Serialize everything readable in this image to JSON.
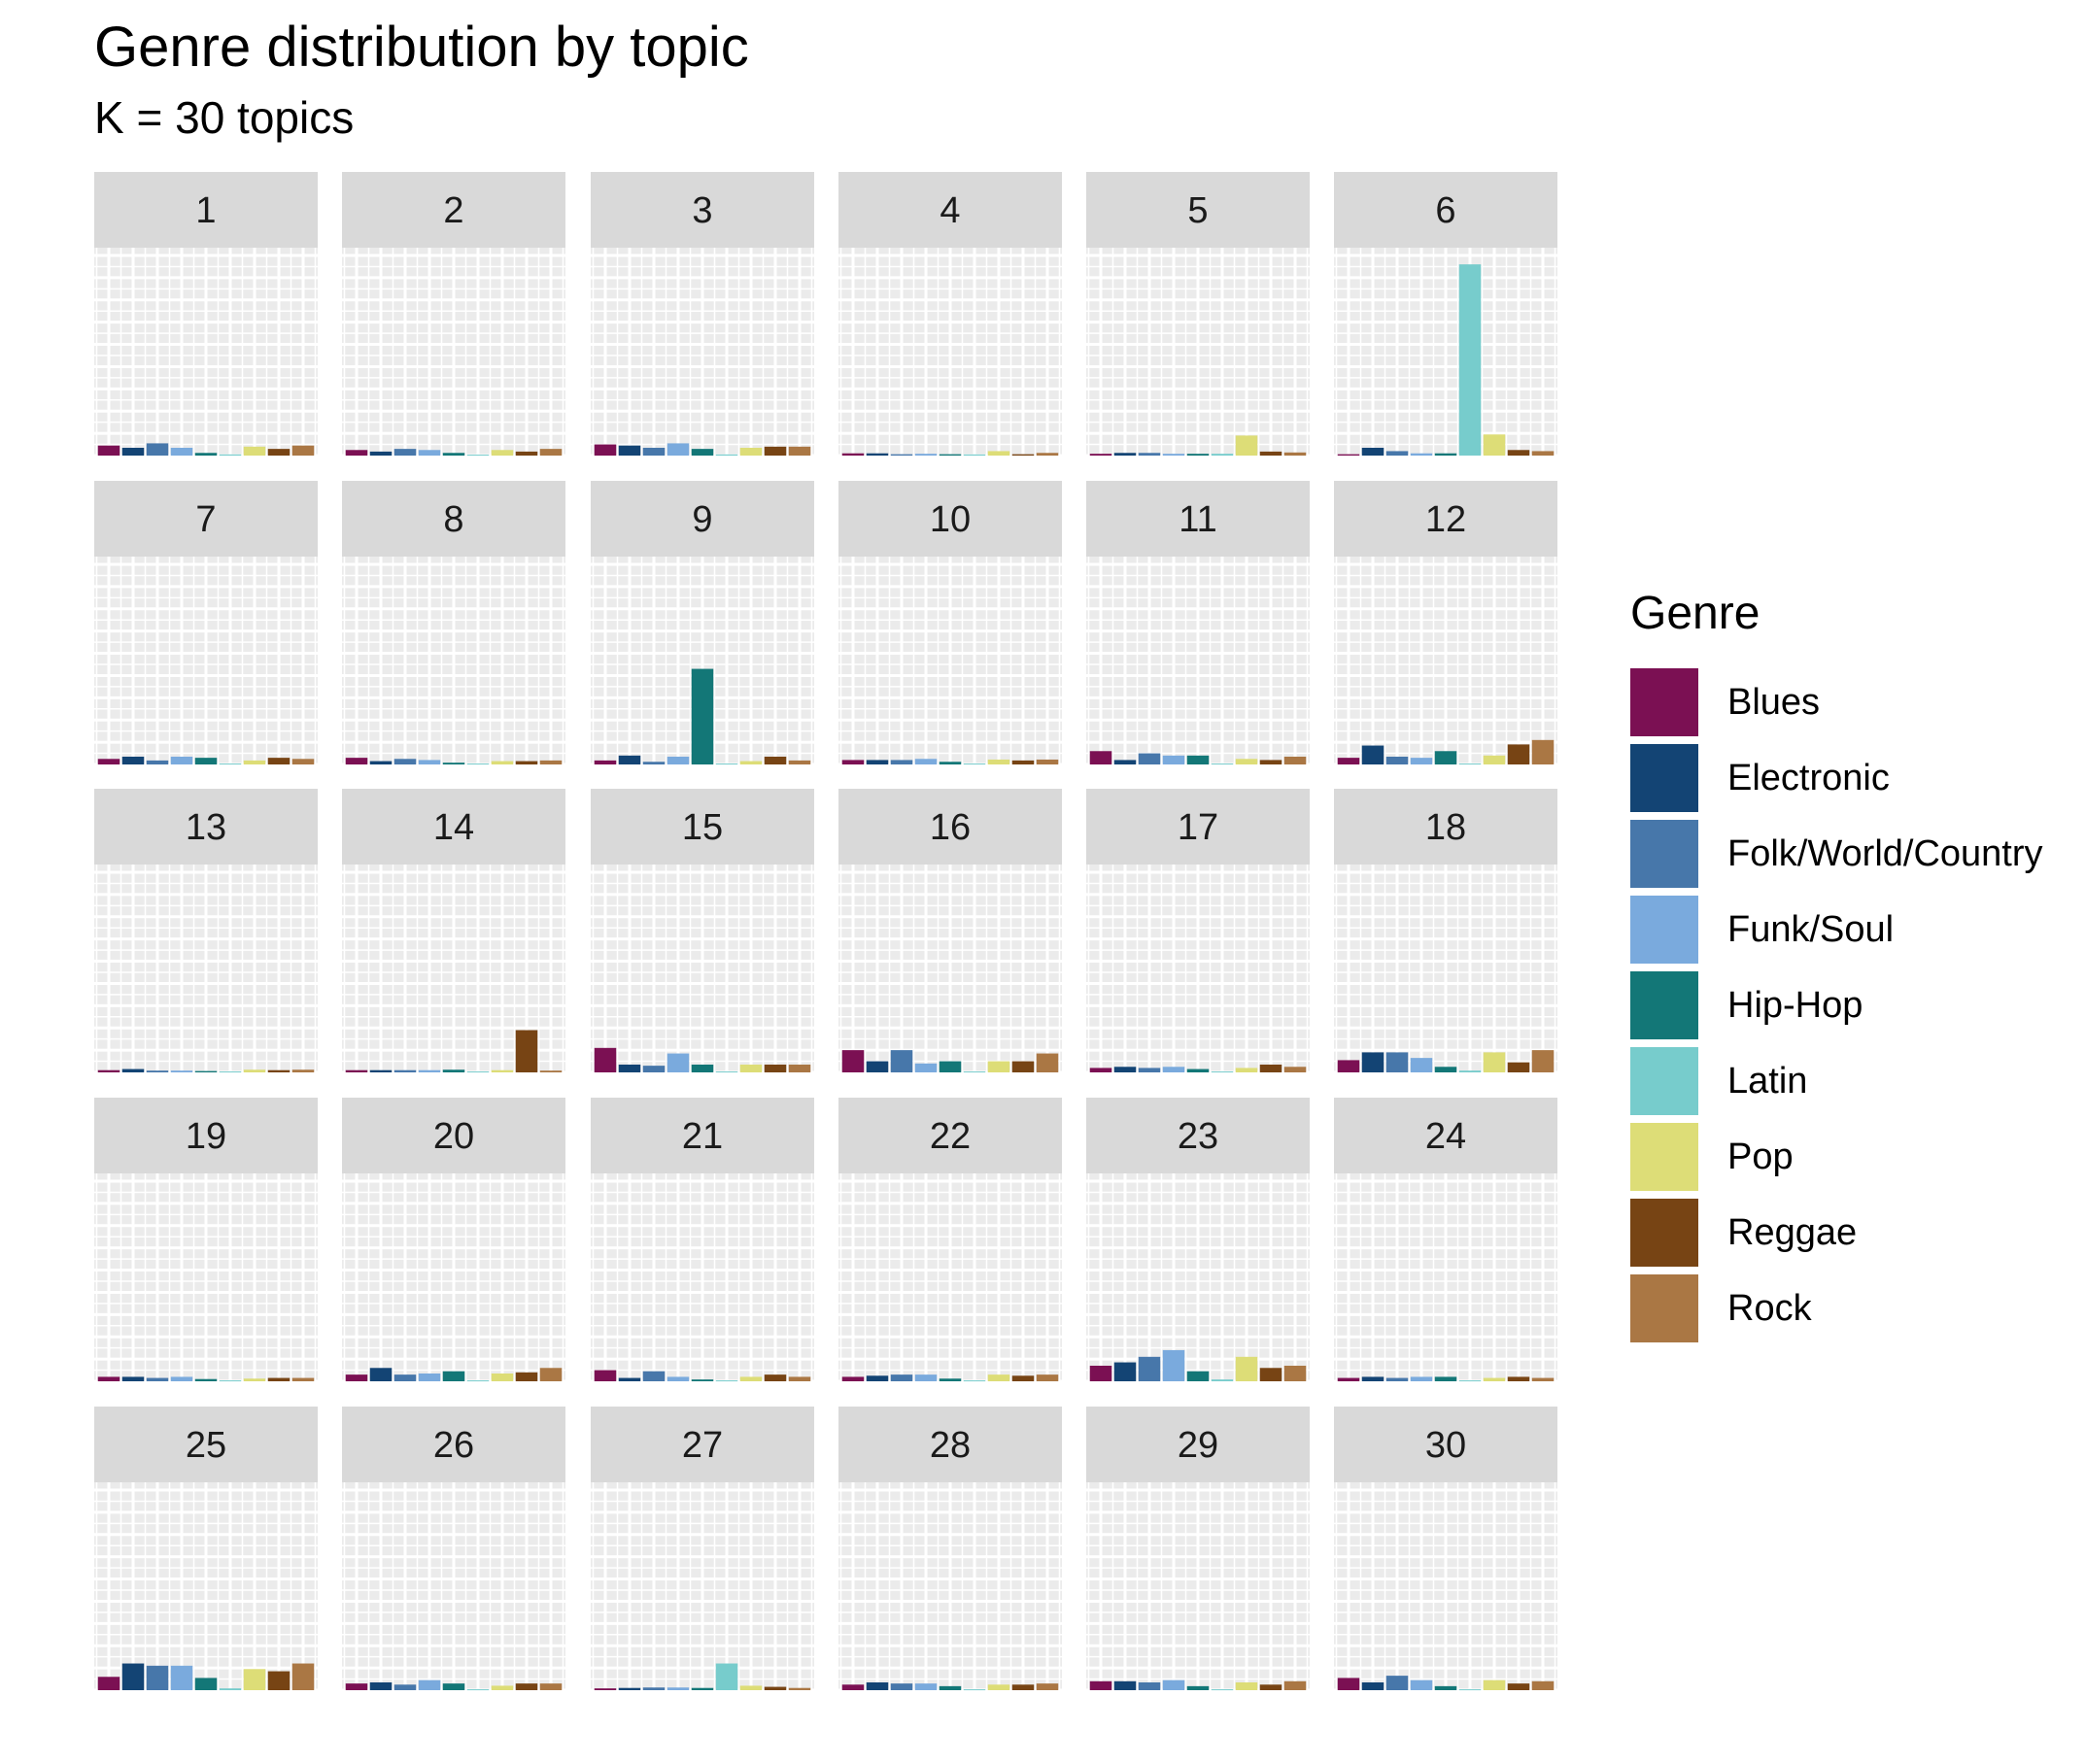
{
  "chart_data": {
    "type": "bar",
    "title": "Genre distribution by topic",
    "subtitle": "K = 30 topics",
    "legend": {
      "title": "Genre",
      "placement": "right",
      "entries": [
        {
          "label": "Blues",
          "color": "#7b1053"
        },
        {
          "label": "Electronic",
          "color": "#134474"
        },
        {
          "label": "Folk/World/Country",
          "color": "#4777aa"
        },
        {
          "label": "Funk/Soul",
          "color": "#7aaadd"
        },
        {
          "label": "Hip-Hop",
          "color": "#137777"
        },
        {
          "label": "Latin",
          "color": "#77cccc"
        },
        {
          "label": "Pop",
          "color": "#dddd77"
        },
        {
          "label": "Reggae",
          "color": "#774414"
        },
        {
          "label": "Rock",
          "color": "#aa7744"
        }
      ]
    },
    "categories": [
      "Blues",
      "Electronic",
      "Folk/World/Country",
      "Funk/Soul",
      "Hip-Hop",
      "Latin",
      "Pop",
      "Reggae",
      "Rock"
    ],
    "ylim": [
      0,
      0.9
    ],
    "grid": true,
    "facets": [
      {
        "label": "1",
        "values": [
          0.045,
          0.035,
          0.055,
          0.035,
          0.012,
          0.005,
          0.04,
          0.03,
          0.045
        ]
      },
      {
        "label": "2",
        "values": [
          0.025,
          0.018,
          0.03,
          0.025,
          0.012,
          0.004,
          0.025,
          0.018,
          0.03
        ]
      },
      {
        "label": "3",
        "values": [
          0.05,
          0.045,
          0.035,
          0.055,
          0.03,
          0.005,
          0.035,
          0.04,
          0.04
        ]
      },
      {
        "label": "4",
        "values": [
          0.01,
          0.01,
          0.006,
          0.008,
          0.006,
          0.005,
          0.02,
          0.006,
          0.012
        ]
      },
      {
        "label": "5",
        "values": [
          0.008,
          0.012,
          0.012,
          0.008,
          0.008,
          0.008,
          0.09,
          0.018,
          0.014
        ]
      },
      {
        "label": "6",
        "values": [
          0.006,
          0.035,
          0.02,
          0.01,
          0.01,
          0.86,
          0.095,
          0.025,
          0.02
        ]
      },
      {
        "label": "7",
        "values": [
          0.025,
          0.035,
          0.018,
          0.035,
          0.03,
          0.004,
          0.018,
          0.03,
          0.025
        ]
      },
      {
        "label": "8",
        "values": [
          0.03,
          0.015,
          0.025,
          0.02,
          0.008,
          0.004,
          0.015,
          0.015,
          0.018
        ]
      },
      {
        "label": "9",
        "values": [
          0.018,
          0.04,
          0.012,
          0.035,
          0.43,
          0.004,
          0.015,
          0.035,
          0.018
        ]
      },
      {
        "label": "10",
        "values": [
          0.02,
          0.02,
          0.02,
          0.025,
          0.012,
          0.004,
          0.022,
          0.018,
          0.022
        ]
      },
      {
        "label": "11",
        "values": [
          0.06,
          0.02,
          0.05,
          0.04,
          0.04,
          0.004,
          0.025,
          0.02,
          0.035
        ]
      },
      {
        "label": "12",
        "values": [
          0.03,
          0.085,
          0.035,
          0.03,
          0.06,
          0.004,
          0.04,
          0.09,
          0.11
        ]
      },
      {
        "label": "13",
        "values": [
          0.01,
          0.015,
          0.008,
          0.008,
          0.006,
          0.004,
          0.012,
          0.01,
          0.012
        ]
      },
      {
        "label": "14",
        "values": [
          0.01,
          0.01,
          0.01,
          0.01,
          0.012,
          0.004,
          0.01,
          0.19,
          0.008
        ]
      },
      {
        "label": "15",
        "values": [
          0.11,
          0.035,
          0.03,
          0.085,
          0.035,
          0.004,
          0.035,
          0.035,
          0.035
        ]
      },
      {
        "label": "16",
        "values": [
          0.1,
          0.05,
          0.1,
          0.04,
          0.05,
          0.004,
          0.05,
          0.05,
          0.085
        ]
      },
      {
        "label": "17",
        "values": [
          0.02,
          0.025,
          0.02,
          0.025,
          0.015,
          0.004,
          0.02,
          0.035,
          0.025
        ]
      },
      {
        "label": "18",
        "values": [
          0.055,
          0.09,
          0.09,
          0.065,
          0.025,
          0.008,
          0.09,
          0.045,
          0.1
        ]
      },
      {
        "label": "19",
        "values": [
          0.02,
          0.02,
          0.015,
          0.02,
          0.01,
          0.004,
          0.012,
          0.015,
          0.015
        ]
      },
      {
        "label": "20",
        "values": [
          0.03,
          0.06,
          0.03,
          0.035,
          0.045,
          0.004,
          0.035,
          0.04,
          0.06
        ]
      },
      {
        "label": "21",
        "values": [
          0.05,
          0.015,
          0.045,
          0.02,
          0.008,
          0.004,
          0.02,
          0.03,
          0.02
        ]
      },
      {
        "label": "22",
        "values": [
          0.02,
          0.025,
          0.03,
          0.03,
          0.012,
          0.004,
          0.03,
          0.025,
          0.03
        ]
      },
      {
        "label": "23",
        "values": [
          0.07,
          0.085,
          0.11,
          0.14,
          0.045,
          0.008,
          0.11,
          0.06,
          0.07
        ]
      },
      {
        "label": "24",
        "values": [
          0.015,
          0.02,
          0.015,
          0.02,
          0.02,
          0.004,
          0.015,
          0.02,
          0.015
        ]
      },
      {
        "label": "25",
        "values": [
          0.06,
          0.12,
          0.11,
          0.11,
          0.055,
          0.008,
          0.095,
          0.085,
          0.12
        ]
      },
      {
        "label": "26",
        "values": [
          0.03,
          0.035,
          0.025,
          0.045,
          0.03,
          0.004,
          0.02,
          0.03,
          0.03
        ]
      },
      {
        "label": "27",
        "values": [
          0.008,
          0.01,
          0.012,
          0.012,
          0.01,
          0.12,
          0.02,
          0.015,
          0.01
        ]
      },
      {
        "label": "28",
        "values": [
          0.025,
          0.035,
          0.03,
          0.03,
          0.018,
          0.004,
          0.025,
          0.025,
          0.03
        ]
      },
      {
        "label": "29",
        "values": [
          0.04,
          0.04,
          0.035,
          0.045,
          0.018,
          0.004,
          0.035,
          0.025,
          0.04
        ]
      },
      {
        "label": "30",
        "values": [
          0.055,
          0.035,
          0.065,
          0.045,
          0.018,
          0.004,
          0.045,
          0.03,
          0.04
        ]
      }
    ]
  }
}
